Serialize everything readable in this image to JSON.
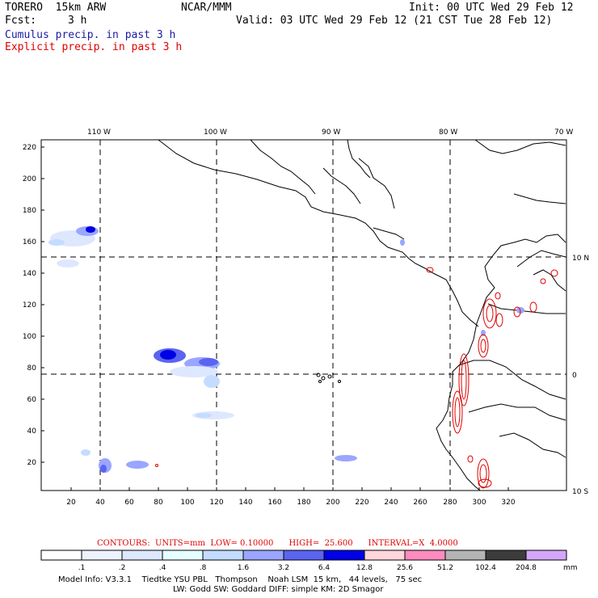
{
  "header": {
    "model": "TORERO  15km ARW",
    "org": "NCAR/MMM",
    "init": "Init: 00 UTC Wed 29 Feb 12",
    "fcst_label": "Fcst:",
    "fcst_value": "3 h",
    "valid": "Valid: 03 UTC Wed 29 Feb 12 (21 CST Tue 28 Feb 12)",
    "field1": "Cumulus precip. in past 3 h",
    "field2": "Explicit precip. in past 3 h"
  },
  "lon_labels": [
    "110 W",
    "100 W",
    "90 W",
    "80 W",
    "70 W"
  ],
  "lat_labels": [
    "10 N",
    "0",
    "10 S"
  ],
  "y_ticks": [
    "220",
    "200",
    "180",
    "160",
    "140",
    "120",
    "100",
    "80",
    "60",
    "40",
    "20"
  ],
  "x_ticks": [
    "20",
    "40",
    "60",
    "80",
    "100",
    "120",
    "140",
    "160",
    "180",
    "200",
    "220",
    "240",
    "260",
    "280",
    "300",
    "320"
  ],
  "contours": "CONTOURS:  UNITS=mm  LOW= 0.10000      HIGH=  25.600      INTERVAL=X  4.0000",
  "colorbar": {
    "labels": [
      ".1",
      ".2",
      ".4",
      ".8",
      "1.6",
      "3.2",
      "6.4",
      "12.8",
      "25.6",
      "51.2",
      "102.4",
      "204.8"
    ],
    "unit": "mm",
    "colors": [
      "#ffffff",
      "#eef2ff",
      "#dde8ff",
      "#e6ffff",
      "#c4dcff",
      "#9aa6ff",
      "#5a64f0",
      "#0000e6",
      "#ffd6dc",
      "#ff8cbe",
      "#b4b4b4",
      "#3c3c3c",
      "#d4a6f8"
    ]
  },
  "footer": {
    "line1": "Model Info: V3.3.1    Tiedtke YSU PBL   Thompson    Noah LSM  15 km,   44 levels,   75 sec",
    "line2": "LW: Godd SW: Goddard DIFF: simple KM: 2D Smagor"
  }
}
